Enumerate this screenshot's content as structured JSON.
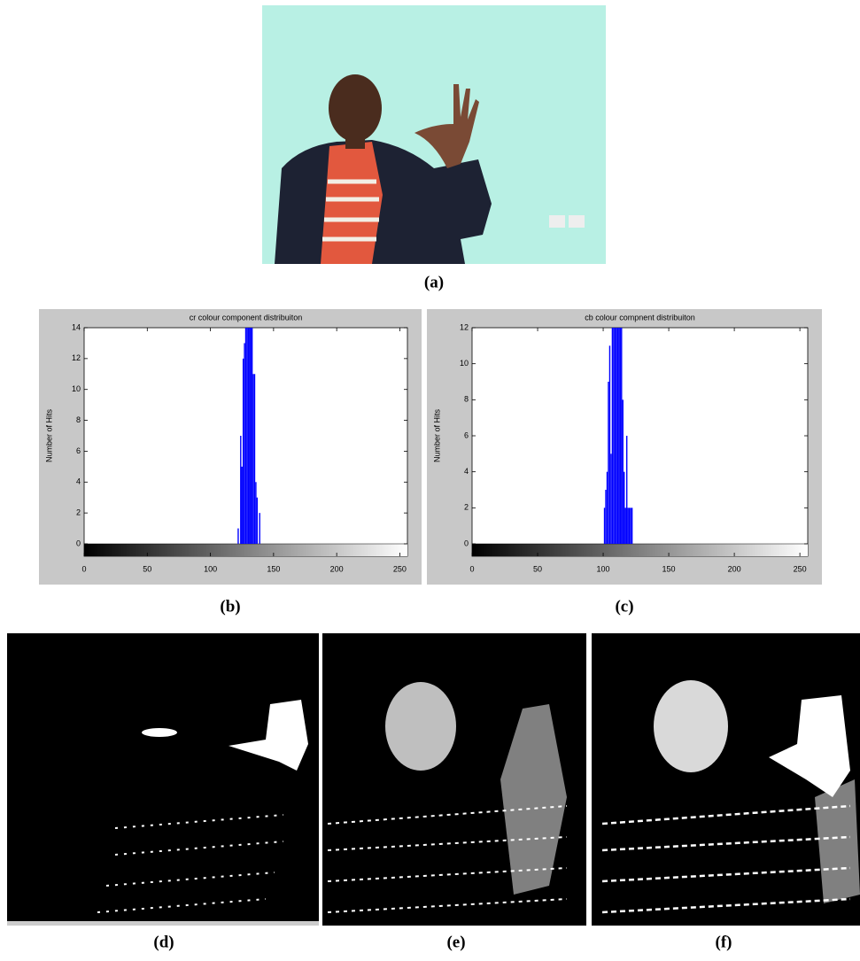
{
  "chart_data": [
    {
      "type": "bar",
      "title": "cr colour component distribuiton",
      "y_label": "Number of Hits",
      "x": [
        122,
        124,
        125,
        126,
        127,
        128,
        129,
        130,
        131,
        132,
        133,
        134,
        135,
        136,
        137,
        139
      ],
      "values": [
        1,
        7,
        5,
        12,
        13,
        14,
        14,
        14,
        14,
        14,
        14,
        11,
        11,
        4,
        3,
        2
      ],
      "color": "#0000ff",
      "xlim": [
        0,
        256
      ],
      "xticks": [
        0,
        50,
        100,
        150,
        200,
        250
      ],
      "ylim": [
        0,
        14
      ],
      "yticks": [
        0,
        2,
        4,
        6,
        8,
        10,
        12,
        14
      ]
    },
    {
      "type": "bar",
      "title": "cb colour compnent distribuiton",
      "y_label": "Number of Hits",
      "x": [
        101,
        102,
        103,
        104,
        105,
        106,
        107,
        108,
        109,
        110,
        111,
        112,
        113,
        114,
        115,
        116,
        117,
        118,
        119,
        120,
        121,
        122
      ],
      "values": [
        2,
        3,
        4,
        9,
        11,
        5,
        12,
        12,
        12,
        12,
        12,
        12,
        12,
        12,
        8,
        4,
        2,
        6,
        2,
        2,
        2,
        2
      ],
      "color": "#0000ff",
      "xlim": [
        0,
        256
      ],
      "xticks": [
        0,
        50,
        100,
        150,
        200,
        250
      ],
      "ylim": [
        0,
        12
      ],
      "yticks": [
        0,
        2,
        4,
        6,
        8,
        10,
        12
      ]
    }
  ],
  "captions": [
    "(a)",
    "(b)",
    "(c)",
    "(d)",
    "(e)",
    "(f)"
  ]
}
